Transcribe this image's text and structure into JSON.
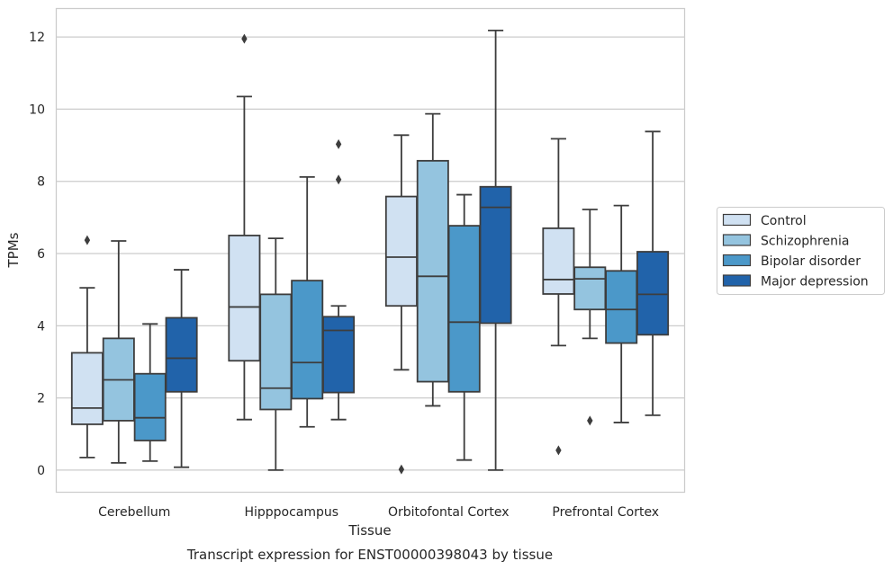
{
  "chart_data": {
    "type": "box",
    "title": "",
    "caption": "Transcript expression for ENST00000398043 by tissue",
    "xlabel": "Tissue",
    "ylabel": "TPMs",
    "ylim": [
      -0.6,
      12.8
    ],
    "yticks": [
      0,
      2,
      4,
      6,
      8,
      10,
      12
    ],
    "grid": true,
    "legend_position": "right",
    "categories": [
      "Cerebellum",
      "Hipppocampus",
      "Orbitofontal Cortex",
      "Prefrontal Cortex"
    ],
    "series": [
      {
        "name": "Control",
        "color": "#d0e1f2",
        "boxes": [
          {
            "whislo": 0.35,
            "q1": 1.27,
            "med": 1.72,
            "q3": 3.25,
            "whishi": 5.05,
            "fliers": [
              6.37
            ]
          },
          {
            "whislo": 1.4,
            "q1": 3.03,
            "med": 4.52,
            "q3": 6.5,
            "whishi": 10.35,
            "fliers": [
              11.95
            ]
          },
          {
            "whislo": 2.78,
            "q1": 4.55,
            "med": 5.9,
            "q3": 7.58,
            "whishi": 9.28,
            "fliers": [
              0.02
            ]
          },
          {
            "whislo": 3.45,
            "q1": 4.88,
            "med": 5.28,
            "q3": 6.7,
            "whishi": 9.18,
            "fliers": [
              0.55
            ]
          }
        ]
      },
      {
        "name": "Schizophrenia",
        "color": "#94c4df",
        "boxes": [
          {
            "whislo": 0.2,
            "q1": 1.37,
            "med": 2.5,
            "q3": 3.65,
            "whishi": 6.35,
            "fliers": []
          },
          {
            "whislo": 0.0,
            "q1": 1.68,
            "med": 2.27,
            "q3": 4.87,
            "whishi": 6.42,
            "fliers": []
          },
          {
            "whislo": 1.78,
            "q1": 2.45,
            "med": 5.37,
            "q3": 8.57,
            "whishi": 9.87,
            "fliers": []
          },
          {
            "whislo": 3.65,
            "q1": 4.45,
            "med": 5.3,
            "q3": 5.62,
            "whishi": 7.22,
            "fliers": [
              1.37
            ]
          }
        ]
      },
      {
        "name": "Bipolar disorder",
        "color": "#4b98c9",
        "boxes": [
          {
            "whislo": 0.25,
            "q1": 0.82,
            "med": 1.45,
            "q3": 2.67,
            "whishi": 4.05,
            "fliers": []
          },
          {
            "whislo": 1.2,
            "q1": 1.98,
            "med": 2.98,
            "q3": 5.25,
            "whishi": 8.12,
            "fliers": []
          },
          {
            "whislo": 0.28,
            "q1": 2.17,
            "med": 4.1,
            "q3": 6.77,
            "whishi": 7.63,
            "fliers": []
          },
          {
            "whislo": 1.32,
            "q1": 3.52,
            "med": 4.45,
            "q3": 5.52,
            "whishi": 7.33,
            "fliers": []
          }
        ]
      },
      {
        "name": "Major depression",
        "color": "#2163aa",
        "boxes": [
          {
            "whislo": 0.08,
            "q1": 2.17,
            "med": 3.1,
            "q3": 4.22,
            "whishi": 5.55,
            "fliers": []
          },
          {
            "whislo": 1.4,
            "q1": 2.15,
            "med": 3.87,
            "q3": 4.25,
            "whishi": 4.55,
            "fliers": [
              8.05,
              9.03
            ]
          },
          {
            "whislo": 0.0,
            "q1": 4.07,
            "med": 7.28,
            "q3": 7.85,
            "whishi": 12.18,
            "fliers": []
          },
          {
            "whislo": 1.52,
            "q1": 3.75,
            "med": 4.87,
            "q3": 6.05,
            "whishi": 9.38,
            "fliers": []
          }
        ]
      }
    ]
  }
}
